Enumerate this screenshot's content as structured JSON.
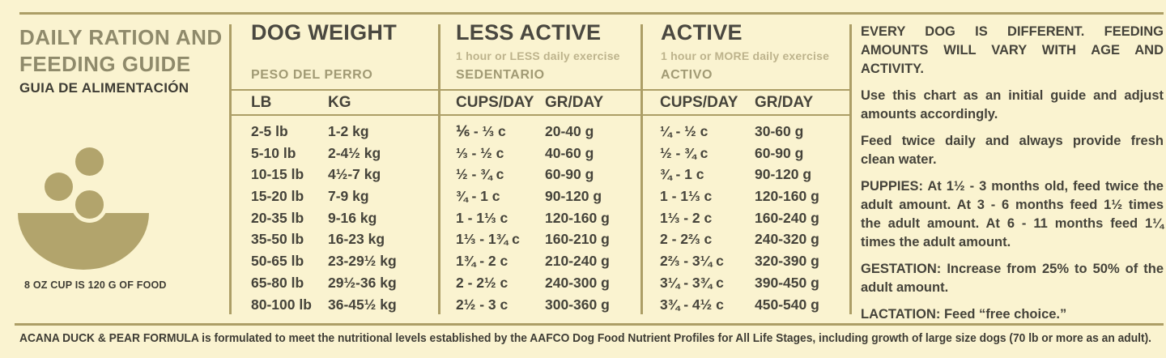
{
  "left_panel": {
    "title_line1": "DAILY RATION AND",
    "title_line2": "FEEDING GUIDE",
    "subtitle_es": "GUIA DE ALIMENTACIÓN",
    "cup_note": "8 OZ CUP IS 120 G OF FOOD"
  },
  "table": {
    "weight": {
      "title": "DOG WEIGHT",
      "subtitle_es": "PESO DEL PERRO",
      "col1": "LB",
      "col2": "KG"
    },
    "less_active": {
      "title": "LESS ACTIVE",
      "exercise_note": "1 hour or LESS daily exercise",
      "subtitle_es": "SEDENTARIO",
      "col1": "CUPS/DAY",
      "col2": "GR/DAY"
    },
    "active": {
      "title": "ACTIVE",
      "exercise_note": "1 hour or MORE daily exercise",
      "subtitle_es": "ACTIVO",
      "col1": "CUPS/DAY",
      "col2": "GR/DAY"
    },
    "rows": [
      {
        "lb": "2-5 lb",
        "kg": "1-2 kg",
        "la_cups": "⅙ - ⅓ c",
        "la_gr": "20-40 g",
        "a_cups": "¼ - ½ c",
        "a_gr": "30-60 g"
      },
      {
        "lb": "5-10 lb",
        "kg": "2-4½ kg",
        "la_cups": "⅓ - ½ c",
        "la_gr": "40-60 g",
        "a_cups": "½ - ¾ c",
        "a_gr": "60-90 g"
      },
      {
        "lb": "10-15 lb",
        "kg": "4½-7 kg",
        "la_cups": "½ - ¾ c",
        "la_gr": "60-90 g",
        "a_cups": "¾ - 1 c",
        "a_gr": "90-120 g"
      },
      {
        "lb": "15-20 lb",
        "kg": "7-9 kg",
        "la_cups": "¾ - 1 c",
        "la_gr": "90-120 g",
        "a_cups": "1 - 1⅓ c",
        "a_gr": "120-160 g"
      },
      {
        "lb": "20-35 lb",
        "kg": "9-16 kg",
        "la_cups": "1 - 1⅓ c",
        "la_gr": "120-160 g",
        "a_cups": "1⅓ - 2 c",
        "a_gr": "160-240 g"
      },
      {
        "lb": "35-50 lb",
        "kg": "16-23 kg",
        "la_cups": "1⅓ - 1¾ c",
        "la_gr": "160-210 g",
        "a_cups": "2 - 2⅔ c",
        "a_gr": "240-320 g"
      },
      {
        "lb": "50-65 lb",
        "kg": "23-29½ kg",
        "la_cups": "1¾ - 2 c",
        "la_gr": "210-240 g",
        "a_cups": "2⅔ - 3¼ c",
        "a_gr": "320-390 g"
      },
      {
        "lb": "65-80 lb",
        "kg": "29½-36 kg",
        "la_cups": "2 - 2½ c",
        "la_gr": "240-300 g",
        "a_cups": "3¼ - 3¾ c",
        "a_gr": "390-450 g"
      },
      {
        "lb": "80-100 lb",
        "kg": "36-45½ kg",
        "la_cups": "2½ - 3 c",
        "la_gr": "300-360 g",
        "a_cups": "3¾ - 4½ c",
        "a_gr": "450-540 g"
      }
    ]
  },
  "right_panel": {
    "heading": "EVERY DOG IS DIFFERENT. FEEDING AMOUNTS WILL VARY WITH AGE AND ACTIVITY.",
    "paragraphs": [
      "Use this chart as an initial guide and adjust amounts accordingly.",
      "Feed twice daily and always provide fresh clean water.",
      "PUPPIES: At 1½ - 3 months old, feed twice the adult amount. At 3 - 6 months feed 1½ times the adult amount. At 6 - 11 months feed 1¼ times the adult amount.",
      "GESTATION: Increase from 25% to 50% of the adult amount.",
      "LACTATION: Feed “free choice.”"
    ]
  },
  "footer": {
    "note": "ACANA DUCK & PEAR FORMULA is formulated to meet the nutritional levels established by the AAFCO Dog Food Nutrient Profiles for All Life Stages, including growth of large size dogs (70 lb or more as an adult)."
  },
  "colors": {
    "background": "#FAF3D0",
    "khaki_accent": "#AC9E66",
    "olive_title": "#8F8A6B",
    "dark_text": "#45433A"
  }
}
